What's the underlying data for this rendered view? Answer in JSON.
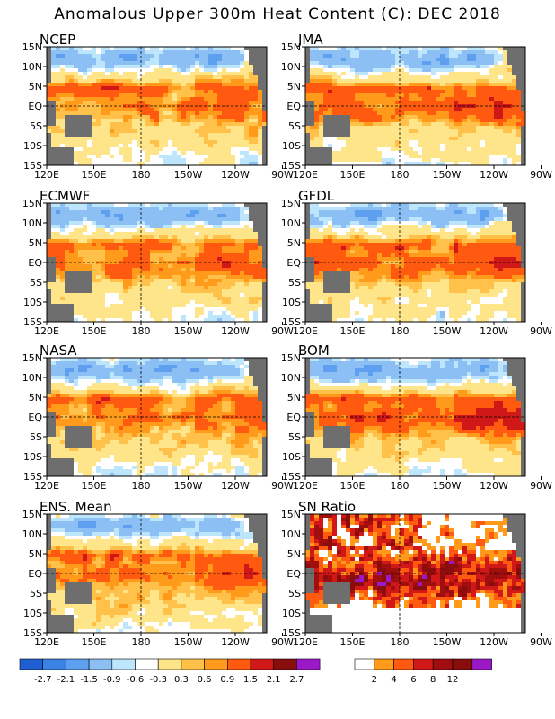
{
  "title": "Anomalous Upper 300m Heat Content (C): DEC 2018",
  "colors": {
    "anomaly_scale": [
      "#1f5fd1",
      "#3a82e6",
      "#5f9fef",
      "#8cc0f5",
      "#bde5fb",
      "#ffffff",
      "#ffe58a",
      "#ffc14a",
      "#ff9a1a",
      "#ff5a10",
      "#d01818",
      "#8a0d0d",
      "#9b18c8"
    ],
    "sn_scale": [
      "#ffffff",
      "#ff9a1a",
      "#ff5a10",
      "#d01818",
      "#a00e0e",
      "#8a0d0d",
      "#9b18c8"
    ],
    "land": "#6e6e6e"
  },
  "chart_data": [
    {
      "type": "heatmap",
      "title": "NCEP",
      "x_ticks": [
        "120E",
        "150E",
        "180",
        "150W",
        "120W",
        "90W"
      ],
      "y_ticks": [
        "15N",
        "10N",
        "5N",
        "EQ",
        "5S",
        "10S",
        "15S"
      ]
    },
    {
      "type": "heatmap",
      "title": "JMA",
      "x_ticks": [
        "120E",
        "150E",
        "180",
        "150W",
        "120W",
        "90W"
      ],
      "y_ticks": [
        "15N",
        "10N",
        "5N",
        "EQ",
        "5S",
        "10S",
        "15S"
      ]
    },
    {
      "type": "heatmap",
      "title": "ECMWF",
      "x_ticks": [
        "120E",
        "150E",
        "180",
        "150W",
        "120W",
        "90W"
      ],
      "y_ticks": [
        "15N",
        "10N",
        "5N",
        "EQ",
        "5S",
        "10S",
        "15S"
      ]
    },
    {
      "type": "heatmap",
      "title": "GFDL",
      "x_ticks": [
        "120E",
        "150E",
        "180",
        "150W",
        "120W",
        "90W"
      ],
      "y_ticks": [
        "15N",
        "10N",
        "5N",
        "EQ",
        "5S",
        "10S",
        "15S"
      ]
    },
    {
      "type": "heatmap",
      "title": "NASA",
      "x_ticks": [
        "120E",
        "150E",
        "180",
        "150W",
        "120W",
        "90W"
      ],
      "y_ticks": [
        "15N",
        "10N",
        "5N",
        "EQ",
        "5S",
        "10S",
        "15S"
      ]
    },
    {
      "type": "heatmap",
      "title": "BOM",
      "x_ticks": [
        "120E",
        "150E",
        "180",
        "150W",
        "120W",
        "90W"
      ],
      "y_ticks": [
        "15N",
        "10N",
        "5N",
        "EQ",
        "5S",
        "10S",
        "15S"
      ]
    },
    {
      "type": "heatmap",
      "title": "ENS. Mean",
      "x_ticks": [
        "120E",
        "150E",
        "180",
        "150W",
        "120W",
        "90W"
      ],
      "y_ticks": [
        "15N",
        "10N",
        "5N",
        "EQ",
        "5S",
        "10S",
        "15S"
      ]
    },
    {
      "type": "heatmap",
      "title": "SN Ratio",
      "x_ticks": [
        "120E",
        "150E",
        "180",
        "150W",
        "120W",
        "90W"
      ],
      "y_ticks": [
        "15N",
        "10N",
        "5N",
        "EQ",
        "5S",
        "10S",
        "15S"
      ]
    }
  ],
  "legend_anomaly": [
    "-2.7",
    "-2.1",
    "-1.5",
    "-0.9",
    "-0.6",
    "-0.3",
    "0.3",
    "0.6",
    "0.9",
    "1.5",
    "2.1",
    "2.7"
  ],
  "legend_sn": [
    "2",
    "4",
    "6",
    "8",
    "12"
  ]
}
